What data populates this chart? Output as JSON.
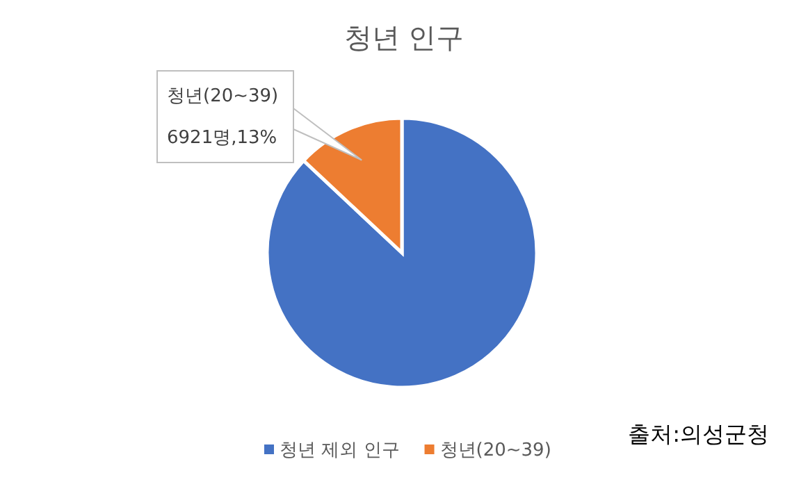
{
  "chart_data": {
    "type": "pie",
    "title": "청년 인구",
    "categories": [
      "청년 제외 인구",
      "청년(20~39)"
    ],
    "values": [
      87,
      13
    ],
    "colors": [
      "#4472c4",
      "#ed7d31"
    ],
    "value_labels": [
      null,
      "6921명,13%"
    ],
    "legend": "bottom",
    "annotations": [
      "출처:의성군청"
    ]
  }
}
